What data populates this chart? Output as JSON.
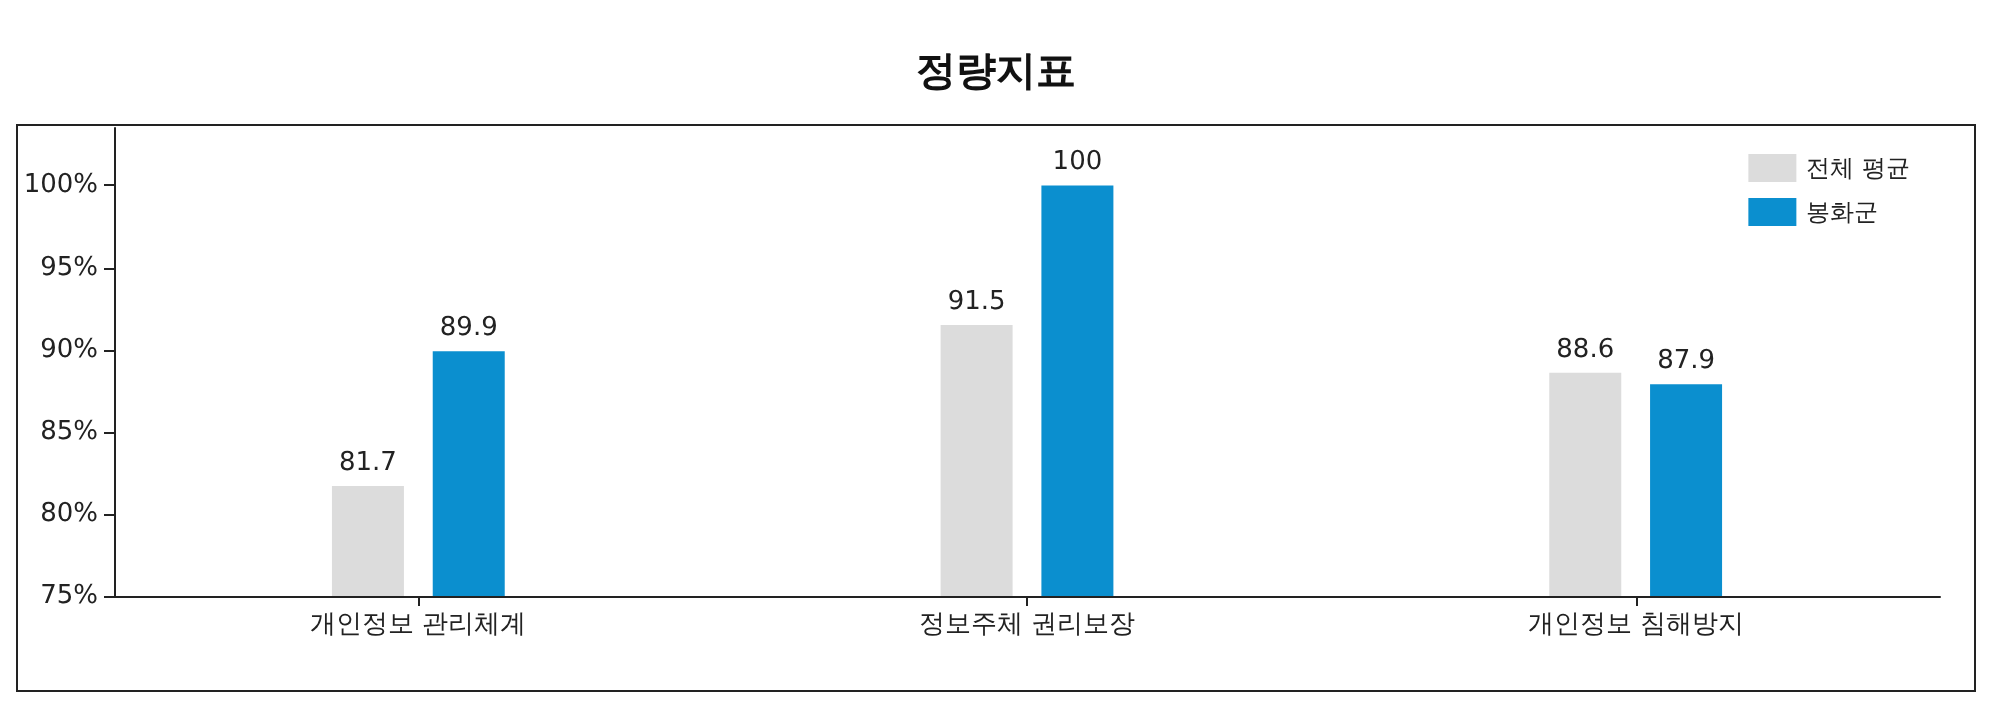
{
  "chart_data": {
    "type": "bar",
    "title": "정량지표",
    "categories": [
      "개인정보 관리체계",
      "정보주체 권리보장",
      "개인정보 침해방지"
    ],
    "series": [
      {
        "name": "전체 평균",
        "color": "#dcdcdc",
        "values": [
          81.7,
          91.5,
          88.6
        ]
      },
      {
        "name": "봉화군",
        "color": "#0b8fcf",
        "values": [
          89.9,
          100,
          87.9
        ]
      }
    ],
    "ylim": [
      75,
      103.5
    ],
    "yticks": [
      {
        "value": 75,
        "label": "75%"
      },
      {
        "value": 80,
        "label": "80%"
      },
      {
        "value": 85,
        "label": "85%"
      },
      {
        "value": 90,
        "label": "90%"
      },
      {
        "value": 95,
        "label": "95%"
      },
      {
        "value": 100,
        "label": "100%"
      }
    ],
    "data_labels": true,
    "legend": "top right",
    "grid": false
  }
}
